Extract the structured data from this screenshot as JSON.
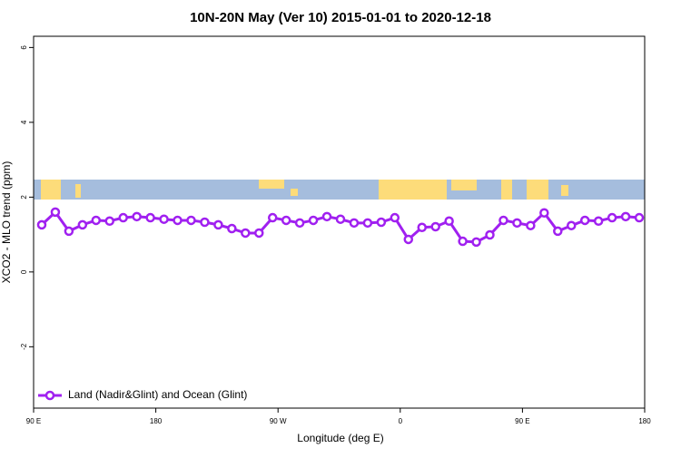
{
  "chart_data": {
    "type": "line",
    "title": "10N-20N May (Ver 10)   2015-01-01 to 2020-12-18",
    "xlabel": "Longitude (deg E)",
    "ylabel": "XCO2 - MLO trend (ppm)",
    "xlim": [
      90,
      540
    ],
    "ylim": [
      -3.64,
      6.3
    ],
    "xticks": [
      {
        "value": 90,
        "label": "90 E"
      },
      {
        "value": 180,
        "label": "180"
      },
      {
        "value": 270,
        "label": "90 W"
      },
      {
        "value": 360,
        "label": "0"
      },
      {
        "value": 450,
        "label": "90 E"
      },
      {
        "value": 540,
        "label": "180"
      }
    ],
    "yticks": [
      -2,
      0,
      2,
      4,
      6
    ],
    "legend": "bottom-left",
    "x": [
      96,
      106,
      116,
      126,
      136,
      146,
      156,
      166,
      176,
      186,
      196,
      206,
      216,
      226,
      236,
      246,
      256,
      266,
      276,
      286,
      296,
      306,
      316,
      326,
      336,
      346,
      356,
      366,
      376,
      386,
      396,
      406,
      416,
      426,
      436,
      446,
      456,
      466,
      476,
      486,
      496,
      506,
      516,
      526,
      536
    ],
    "series": [
      {
        "name": "Land (Nadir&Glint) and Ocean (Glint)",
        "color": "#a020f0",
        "values": [
          1.26,
          1.6,
          1.09,
          1.26,
          1.38,
          1.36,
          1.45,
          1.48,
          1.45,
          1.41,
          1.38,
          1.38,
          1.33,
          1.26,
          1.16,
          1.04,
          1.04,
          1.45,
          1.38,
          1.31,
          1.38,
          1.48,
          1.41,
          1.31,
          1.31,
          1.33,
          1.45,
          0.87,
          1.19,
          1.21,
          1.36,
          0.82,
          0.8,
          0.99,
          1.38,
          1.31,
          1.24,
          1.58,
          1.09,
          1.24,
          1.38,
          1.36,
          1.45,
          1.48,
          1.45
        ]
      }
    ]
  }
}
